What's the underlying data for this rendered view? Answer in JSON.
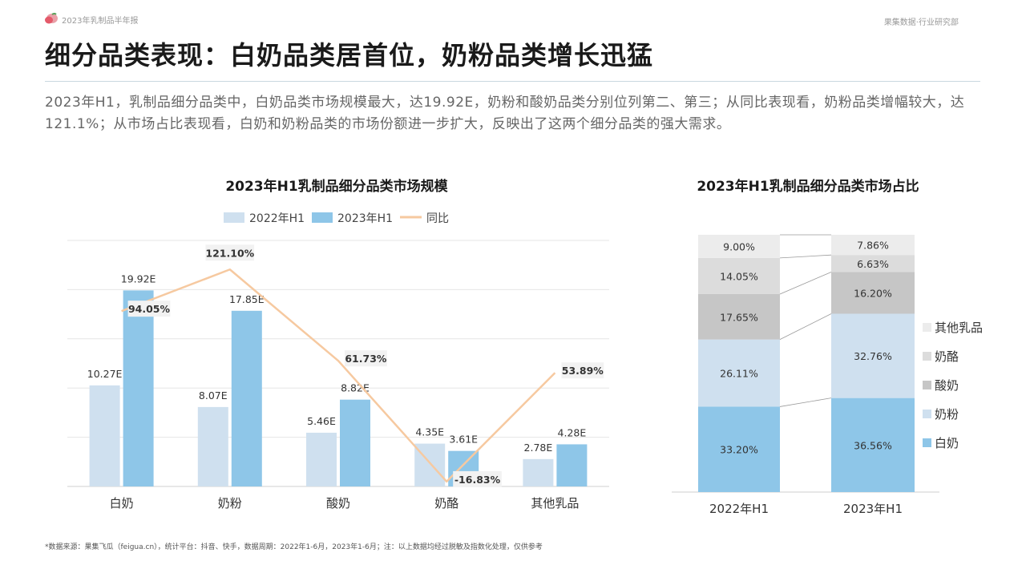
{
  "header": {
    "report_name": "2023年乳制品半年报",
    "department": "果集数据·行业研究部"
  },
  "page": {
    "title": "细分品类表现：白奶品类居首位，奶粉品类增长迅猛",
    "summary": "2023年H1，乳制品细分品类中，白奶品类市场规模最大，达19.92E，奶粉和酸奶品类分别位列第二、第三；从同比表现看，奶粉品类增幅较大，达121.1%；从市场占比表现看，白奶和奶粉品类的市场份额进一步扩大，反映出了这两个细分品类的强大需求。"
  },
  "colors": {
    "bar_2022": "#cfe0ef",
    "bar_2023": "#8ec6e8",
    "yoy_line": "#f6c9a0",
    "stack_其他乳品": "#ececec",
    "stack_奶酪": "#dcdcdc",
    "stack_酸奶": "#c6c6c6",
    "stack_奶粉": "#cfe0ef",
    "stack_白奶": "#8ec6e8"
  },
  "chart_data": [
    {
      "type": "bar",
      "title": "2023年H1乳制品细分品类市场规模",
      "categories": [
        "白奶",
        "奶粉",
        "酸奶",
        "奶酪",
        "其他乳品"
      ],
      "series": [
        {
          "name": "2022年H1",
          "values": [
            10.27,
            8.07,
            5.46,
            4.35,
            2.78
          ],
          "labels": [
            "10.27E",
            "8.07E",
            "5.46E",
            "4.35E",
            "2.78E"
          ]
        },
        {
          "name": "2023年H1",
          "values": [
            19.92,
            17.85,
            8.82,
            3.61,
            4.28
          ],
          "labels": [
            "19.92E",
            "17.85E",
            "8.82E",
            "3.61E",
            "4.28E"
          ]
        },
        {
          "name": "同比",
          "type": "line",
          "values": [
            94.05,
            121.1,
            61.73,
            -16.83,
            53.89
          ],
          "labels": [
            "94.05%",
            "121.10%",
            "61.73%",
            "-16.83%",
            "53.89%"
          ]
        }
      ],
      "ylim": [
        0,
        25
      ],
      "yoy_ylim": [
        -20,
        140
      ],
      "grid": true,
      "legend": "top-center"
    },
    {
      "type": "bar",
      "stacked": true,
      "title": "2023年H1乳制品细分品类市场占比",
      "categories": [
        "2022年H1",
        "2023年H1"
      ],
      "series": [
        {
          "name": "白奶",
          "values": [
            33.2,
            36.56
          ],
          "labels": [
            "33.20%",
            "36.56%"
          ]
        },
        {
          "name": "奶粉",
          "values": [
            26.11,
            32.76
          ],
          "labels": [
            "26.11%",
            "32.76%"
          ]
        },
        {
          "name": "酸奶",
          "values": [
            17.65,
            16.2
          ],
          "labels": [
            "17.65%",
            "16.20%"
          ]
        },
        {
          "name": "奶酪",
          "values": [
            14.05,
            6.63
          ],
          "labels": [
            "14.05%",
            "6.63%"
          ]
        },
        {
          "name": "其他乳品",
          "values": [
            9.0,
            7.86
          ],
          "labels": [
            "9.00%",
            "7.86%"
          ]
        }
      ],
      "legend_order": [
        "其他乳品",
        "奶酪",
        "酸奶",
        "奶粉",
        "白奶"
      ],
      "ylim": [
        0,
        100
      ],
      "legend": "right"
    }
  ],
  "footnote": "*数据来源：果集飞瓜（feigua.cn），统计平台：抖音、快手，数据周期：2022年1-6月，2023年1-6月；注：以上数据均经过脱敏及指数化处理，仅供参考"
}
